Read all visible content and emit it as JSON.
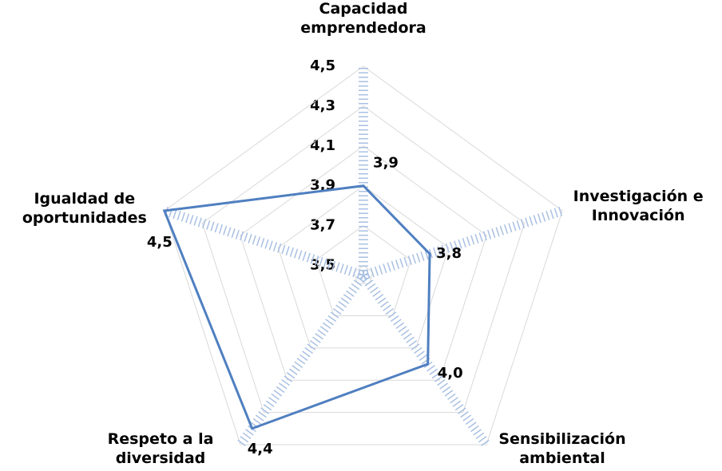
{
  "chart_data": {
    "type": "radar",
    "categories": [
      "Capacidad emprendedora",
      "Investigación e Innovación",
      "Sensibilización ambiental",
      "Respeto a la diversidad",
      "Igualdad de oportunidades"
    ],
    "values": [
      3.9,
      3.8,
      4.0,
      4.4,
      4.5
    ],
    "value_labels": [
      "3,9",
      "3,8",
      "4,0",
      "4,4",
      "4,5"
    ],
    "color": "#4f7fc0",
    "rlim": [
      3.45,
      4.5
    ],
    "rticks": [
      {
        "value": 3.5,
        "label": "3,5"
      },
      {
        "value": 3.7,
        "label": "3,7"
      },
      {
        "value": 3.9,
        "label": "3,9"
      },
      {
        "value": 4.1,
        "label": "4,1"
      },
      {
        "value": 4.3,
        "label": "4,3"
      },
      {
        "value": 4.5,
        "label": "4,5"
      }
    ],
    "grid": true
  }
}
